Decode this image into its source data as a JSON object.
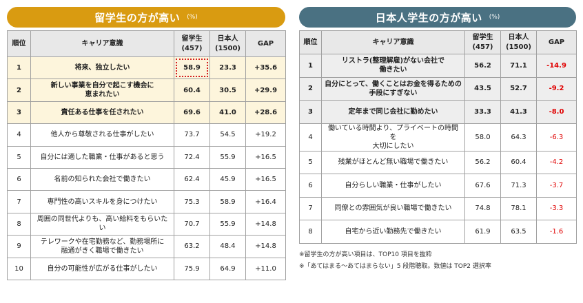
{
  "left": {
    "title": "留学生の方が高い",
    "unit": "(%)",
    "headers": {
      "rank": "順位",
      "career": "キャリア意識",
      "intl": [
        "留学生",
        "(457)"
      ],
      "jp": [
        "日本人",
        "(1500)"
      ],
      "gap": "GAP"
    },
    "rows": [
      {
        "rank": "1",
        "label": [
          "将来、独立したい"
        ],
        "intl": "58.9",
        "jp": "23.3",
        "gap": "+35.6"
      },
      {
        "rank": "2",
        "label": [
          "新しい事業を自分で起こす機会に",
          "恵まれたい"
        ],
        "intl": "60.4",
        "jp": "30.5",
        "gap": "+29.9"
      },
      {
        "rank": "3",
        "label": [
          "責任ある仕事を任されたい"
        ],
        "intl": "69.6",
        "jp": "41.0",
        "gap": "+28.6"
      },
      {
        "rank": "4",
        "label": [
          "他人から尊敬される仕事がしたい"
        ],
        "intl": "73.7",
        "jp": "54.5",
        "gap": "+19.2"
      },
      {
        "rank": "5",
        "label": [
          "自分には適した職業・仕事があると思う"
        ],
        "intl": "72.4",
        "jp": "55.9",
        "gap": "+16.5"
      },
      {
        "rank": "6",
        "label": [
          "名前の知られた会社で働きたい"
        ],
        "intl": "62.4",
        "jp": "45.9",
        "gap": "+16.5"
      },
      {
        "rank": "7",
        "label": [
          "専門性の高いスキルを身につけたい"
        ],
        "intl": "75.3",
        "jp": "58.9",
        "gap": "+16.4"
      },
      {
        "rank": "8",
        "label": [
          "周囲の同世代よりも、高い給料をもらいたい"
        ],
        "intl": "70.7",
        "jp": "55.9",
        "gap": "+14.8"
      },
      {
        "rank": "9",
        "label": [
          "テレワークや在宅勤務など、勤務場所に",
          "融通がきく職場で働きたい"
        ],
        "intl": "63.2",
        "jp": "48.4",
        "gap": "+14.8"
      },
      {
        "rank": "10",
        "label": [
          "自分の可能性が広がる仕事がしたい"
        ],
        "intl": "75.9",
        "jp": "64.9",
        "gap": "+11.0"
      }
    ]
  },
  "right": {
    "title": "日本人学生の方が高い",
    "unit": "(%)",
    "headers": {
      "rank": "順位",
      "career": "キャリア意識",
      "intl": [
        "留学生",
        "(457)"
      ],
      "jp": [
        "日本人",
        "(1500)"
      ],
      "gap": "GAP"
    },
    "rows": [
      {
        "rank": "1",
        "label": [
          "リストラ(整理解雇)がない会社で",
          "働きたい"
        ],
        "intl": "56.2",
        "jp": "71.1",
        "gap": "-14.9"
      },
      {
        "rank": "2",
        "label": [
          "自分にとって、働くことはお金を得るための",
          "手段にすぎない"
        ],
        "intl": "43.5",
        "jp": "52.7",
        "gap": "-9.2"
      },
      {
        "rank": "3",
        "label": [
          "定年まで同じ会社に勤めたい"
        ],
        "intl": "33.3",
        "jp": "41.3",
        "gap": "-8.0"
      },
      {
        "rank": "4",
        "label": [
          "働いている時間より、プライベートの時間を",
          "大切にしたい"
        ],
        "intl": "58.0",
        "jp": "64.3",
        "gap": "-6.3"
      },
      {
        "rank": "5",
        "label": [
          "残業がほとんど無い職場で働きたい"
        ],
        "intl": "56.2",
        "jp": "60.4",
        "gap": "-4.2"
      },
      {
        "rank": "6",
        "label": [
          "自分らしい職業・仕事がしたい"
        ],
        "intl": "67.6",
        "jp": "71.3",
        "gap": "-3.7"
      },
      {
        "rank": "7",
        "label": [
          "同僚との雰囲気が良い職場で働きたい"
        ],
        "intl": "74.8",
        "jp": "78.1",
        "gap": "-3.3"
      },
      {
        "rank": "8",
        "label": [
          "自宅から近い勤務先で働きたい"
        ],
        "intl": "61.9",
        "jp": "63.5",
        "gap": "-1.6"
      }
    ]
  },
  "notes": [
    "※留学生の方が高い項目は、TOP10 項目を抜粋",
    "※「あてはまる～あてはまらない」5 段階聴取。数値は TOP2 選択率"
  ]
}
